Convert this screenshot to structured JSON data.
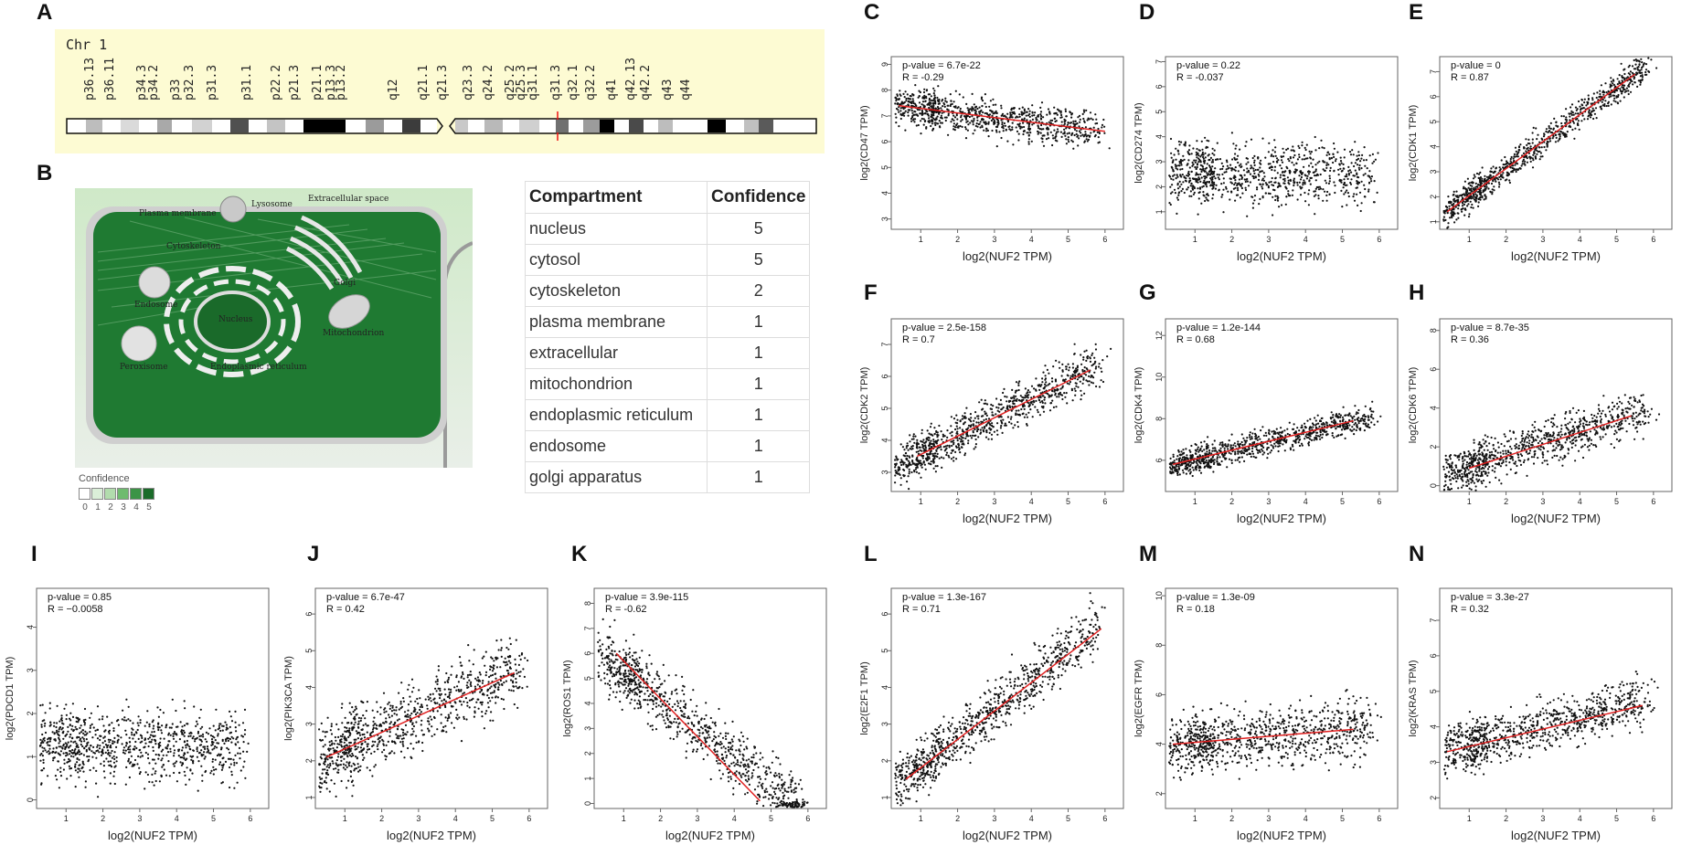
{
  "panel_letters": [
    "A",
    "B",
    "C",
    "D",
    "E",
    "F",
    "G",
    "H",
    "I",
    "J",
    "K",
    "L",
    "M",
    "N"
  ],
  "chromosome": {
    "title": "Chr 1",
    "bands": [
      "p36.13",
      "p36.11",
      "p34.3",
      "p34.2",
      "p33",
      "p32.3",
      "p31.3",
      "p31.1",
      "p22.2",
      "p21.3",
      "p21.1",
      "p13.3",
      "p13.2",
      "q12",
      "q21.1",
      "q21.3",
      "q23.3",
      "q24.2",
      "q25.2",
      "q25.3",
      "q31.1",
      "q31.3",
      "q32.1",
      "q32.2",
      "q41",
      "q42.13",
      "q42.2",
      "q43",
      "q44"
    ]
  },
  "cell_diagram": {
    "labels": [
      "Extracellular space",
      "Plasma membrane",
      "Lysosome",
      "Cytoskeleton",
      "Golgi",
      "Endosome",
      "Nucleus",
      "Mitochondrion",
      "Peroxisome",
      "Endoplasmic reticulum"
    ],
    "legend": {
      "title": "Confidence",
      "levels": [
        "0",
        "1",
        "2",
        "3",
        "4",
        "5"
      ],
      "colors": [
        "#ffffff",
        "#dbefd9",
        "#b2dcad",
        "#6fbb6f",
        "#3c9446",
        "#1b6b2a"
      ]
    }
  },
  "compartment_table": {
    "headers": [
      "Compartment",
      "Confidence"
    ],
    "rows": [
      {
        "compartment": "nucleus",
        "confidence": "5"
      },
      {
        "compartment": "cytosol",
        "confidence": "5"
      },
      {
        "compartment": "cytoskeleton",
        "confidence": "2"
      },
      {
        "compartment": "plasma membrane",
        "confidence": "1"
      },
      {
        "compartment": "extracellular",
        "confidence": "1"
      },
      {
        "compartment": "mitochondrion",
        "confidence": "1"
      },
      {
        "compartment": "endoplasmic reticulum",
        "confidence": "1"
      },
      {
        "compartment": "endosome",
        "confidence": "1"
      },
      {
        "compartment": "golgi apparatus",
        "confidence": "1"
      }
    ]
  },
  "chart_data": [
    {
      "panel": "C",
      "type": "scatter",
      "xlabel": "log2(NUF2 TPM)",
      "ylabel": "log2(CD47 TPM)",
      "pvalue": "p-value = 6.7e-22",
      "r": "R = -0.29",
      "xlim": [
        0.2,
        6.5
      ],
      "xticks": [
        1,
        2,
        3,
        4,
        5,
        6
      ],
      "ylim": [
        2.6,
        9.3
      ],
      "yticks": [
        3,
        4,
        5,
        6,
        7,
        8,
        9
      ],
      "fit": [
        [
          0.4,
          7.4
        ],
        [
          6,
          6.4
        ]
      ],
      "pattern": {
        "slope": -0.18,
        "intercept": 7.45,
        "noise": 0.65
      }
    },
    {
      "panel": "D",
      "type": "scatter",
      "xlabel": "log2(NUF2 TPM)",
      "ylabel": "log2(CD274 TPM)",
      "pvalue": "p-value = 0.22",
      "r": "R = -0.037",
      "xlim": [
        0.2,
        6.5
      ],
      "xticks": [
        1,
        2,
        3,
        4,
        5,
        6
      ],
      "ylim": [
        0.3,
        7.2
      ],
      "yticks": [
        1,
        2,
        3,
        4,
        5,
        6,
        7
      ],
      "fit": null,
      "pattern": {
        "slope": -0.05,
        "intercept": 2.7,
        "noise": 1.15
      }
    },
    {
      "panel": "E",
      "type": "scatter",
      "xlabel": "log2(NUF2 TPM)",
      "ylabel": "log2(CDK1 TPM)",
      "pvalue": "p-value = 0",
      "r": "R = 0.87",
      "xlim": [
        0.2,
        6.5
      ],
      "xticks": [
        1,
        2,
        3,
        4,
        5,
        6
      ],
      "ylim": [
        0.7,
        7.6
      ],
      "yticks": [
        1,
        2,
        3,
        4,
        5,
        6,
        7
      ],
      "fit": [
        [
          0.4,
          1.4
        ],
        [
          5.5,
          6.9
        ]
      ],
      "pattern": {
        "slope": 1.08,
        "intercept": 0.95,
        "noise": 0.55
      }
    },
    {
      "panel": "F",
      "type": "scatter",
      "xlabel": "log2(NUF2 TPM)",
      "ylabel": "log2(CDK2 TPM)",
      "pvalue": "p-value = 2.5e-158",
      "r": "R = 0.7",
      "xlim": [
        0.2,
        6.5
      ],
      "xticks": [
        1,
        2,
        3,
        4,
        5,
        6
      ],
      "ylim": [
        2.4,
        7.8
      ],
      "yticks": [
        3,
        4,
        5,
        6,
        7
      ],
      "fit": [
        [
          0.9,
          3.5
        ],
        [
          5.6,
          6.2
        ]
      ],
      "pattern": {
        "slope": 0.57,
        "intercept": 3.0,
        "noise": 0.6
      }
    },
    {
      "panel": "G",
      "type": "scatter",
      "xlabel": "log2(NUF2 TPM)",
      "ylabel": "log2(CDK4 TPM)",
      "pvalue": "p-value = 1.2e-144",
      "r": "R = 0.68",
      "xlim": [
        0.2,
        6.5
      ],
      "xticks": [
        1,
        2,
        3,
        4,
        5,
        6
      ],
      "ylim": [
        4.5,
        12.8
      ],
      "yticks": [
        6,
        8,
        10,
        12
      ],
      "fit": [
        [
          0.4,
          5.8
        ],
        [
          5.3,
          7.9
        ]
      ],
      "pattern": {
        "slope": 0.43,
        "intercept": 5.6,
        "noise": 0.55
      }
    },
    {
      "panel": "H",
      "type": "scatter",
      "xlabel": "log2(NUF2 TPM)",
      "ylabel": "log2(CDK6 TPM)",
      "pvalue": "p-value = 8.7e-35",
      "r": "R = 0.36",
      "xlim": [
        0.2,
        6.5
      ],
      "xticks": [
        1,
        2,
        3,
        4,
        5,
        6
      ],
      "ylim": [
        -0.3,
        8.6
      ],
      "yticks": [
        0,
        2,
        4,
        6,
        8
      ],
      "fit": [
        [
          1,
          0.9
        ],
        [
          5.4,
          3.6
        ]
      ],
      "pattern": {
        "slope": 0.6,
        "intercept": 0.4,
        "noise": 1.0
      }
    },
    {
      "panel": "I",
      "type": "scatter",
      "xlabel": "log2(NUF2 TPM)",
      "ylabel": "log2(PDCD1 TPM)",
      "pvalue": "p-value = 0.85",
      "r": "R = −0.0058",
      "xlim": [
        0.2,
        6.5
      ],
      "xticks": [
        1,
        2,
        3,
        4,
        5,
        6
      ],
      "ylim": [
        -0.2,
        4.9
      ],
      "yticks": [
        0,
        1,
        2,
        3,
        4
      ],
      "fit": null,
      "pattern": {
        "slope": 0.0,
        "intercept": 1.25,
        "noise": 0.75
      }
    },
    {
      "panel": "J",
      "type": "scatter",
      "xlabel": "log2(NUF2 TPM)",
      "ylabel": "log2(PIK3CA TPM)",
      "pvalue": "p-value = 6.7e-47",
      "r": "R = 0.42",
      "xlim": [
        0.2,
        6.5
      ],
      "xticks": [
        1,
        2,
        3,
        4,
        5,
        6
      ],
      "ylim": [
        0.7,
        6.7
      ],
      "yticks": [
        1,
        2,
        3,
        4,
        5,
        6
      ],
      "fit": [
        [
          0.5,
          2.1
        ],
        [
          5.6,
          4.4
        ]
      ],
      "pattern": {
        "slope": 0.45,
        "intercept": 1.9,
        "noise": 0.85
      }
    },
    {
      "panel": "K",
      "type": "scatter",
      "xlabel": "log2(NUF2 TPM)",
      "ylabel": "log2(ROS1 TPM)",
      "pvalue": "p-value = 3.9e-115",
      "r": "R = -0.62",
      "xlim": [
        0.2,
        6.5
      ],
      "xticks": [
        1,
        2,
        3,
        4,
        5,
        6
      ],
      "ylim": [
        -0.2,
        8.6
      ],
      "yticks": [
        0,
        1,
        2,
        3,
        4,
        5,
        6,
        7,
        8
      ],
      "fit": [
        [
          0.8,
          6.0
        ],
        [
          4.7,
          0.1
        ]
      ],
      "pattern": {
        "slope": -1.15,
        "intercept": 6.4,
        "noise": 1.1
      }
    },
    {
      "panel": "L",
      "type": "scatter",
      "xlabel": "log2(NUF2 TPM)",
      "ylabel": "log2(E2F1 TPM)",
      "pvalue": "p-value = 1.3e-167",
      "r": "R = 0.71",
      "xlim": [
        0.2,
        6.5
      ],
      "xticks": [
        1,
        2,
        3,
        4,
        5,
        6
      ],
      "ylim": [
        0.7,
        6.7
      ],
      "yticks": [
        1,
        2,
        3,
        4,
        5,
        6
      ],
      "fit": [
        [
          0.6,
          1.5
        ],
        [
          5.9,
          5.6
        ]
      ],
      "pattern": {
        "slope": 0.78,
        "intercept": 1.1,
        "noise": 0.65
      }
    },
    {
      "panel": "M",
      "type": "scatter",
      "xlabel": "log2(NUF2 TPM)",
      "ylabel": "log2(EGFR TPM)",
      "pvalue": "p-value = 1.3e-09",
      "r": "R = 0.18",
      "xlim": [
        0.2,
        6.5
      ],
      "xticks": [
        1,
        2,
        3,
        4,
        5,
        6
      ],
      "ylim": [
        1.4,
        10.3
      ],
      "yticks": [
        2,
        4,
        6,
        8,
        10
      ],
      "fit": [
        [
          0.4,
          4.0
        ],
        [
          5.3,
          4.6
        ]
      ],
      "pattern": {
        "slope": 0.12,
        "intercept": 3.95,
        "noise": 1.05
      }
    },
    {
      "panel": "N",
      "type": "scatter",
      "xlabel": "log2(NUF2 TPM)",
      "ylabel": "log2(KRAS TPM)",
      "pvalue": "p-value = 3.3e-27",
      "r": "R = 0.32",
      "xlim": [
        0.2,
        6.5
      ],
      "xticks": [
        1,
        2,
        3,
        4,
        5,
        6
      ],
      "ylim": [
        1.7,
        7.9
      ],
      "yticks": [
        2,
        3,
        4,
        5,
        6,
        7
      ],
      "fit": [
        [
          0.4,
          3.3
        ],
        [
          5.7,
          4.6
        ]
      ],
      "pattern": {
        "slope": 0.26,
        "intercept": 3.2,
        "noise": 0.6
      }
    }
  ]
}
